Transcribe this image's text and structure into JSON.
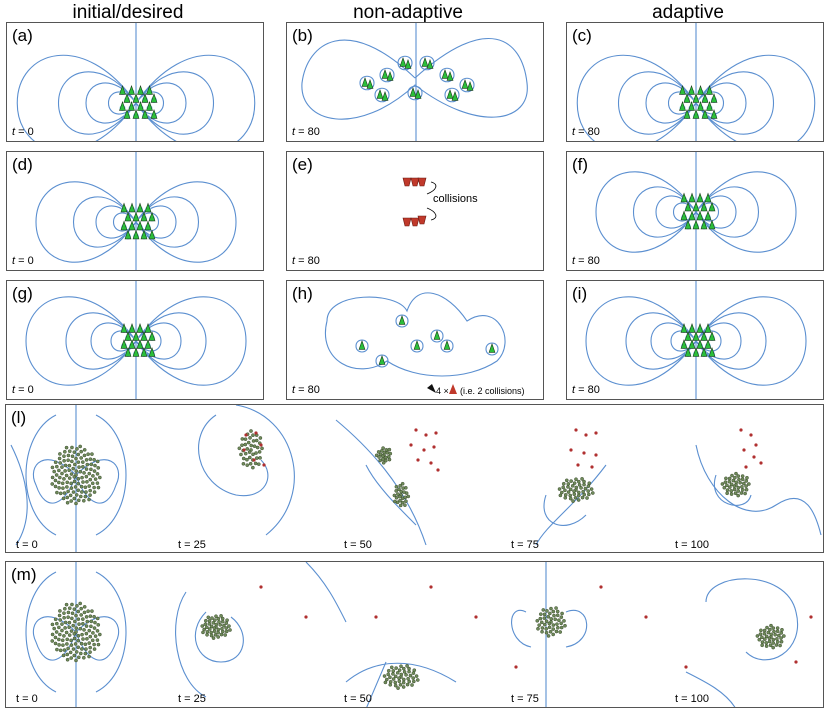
{
  "columns": [
    "initial/desired",
    "non-adaptive",
    "adaptive"
  ],
  "panels": [
    {
      "label": "(a)",
      "t": "t",
      "tval": " = 0"
    },
    {
      "label": "(b)",
      "t": "t",
      "tval": " = 80"
    },
    {
      "label": "(c)",
      "t": "t",
      "tval": " = 80"
    },
    {
      "label": "(d)",
      "t": "t",
      "tval": " = 0"
    },
    {
      "label": "(e)",
      "t": "t",
      "tval": " = 80"
    },
    {
      "label": "(f)",
      "t": "t",
      "tval": " = 80"
    },
    {
      "label": "(g)",
      "t": "t",
      "tval": " = 0"
    },
    {
      "label": "(h)",
      "t": "t",
      "tval": " = 80"
    },
    {
      "label": "(i)",
      "t": "t",
      "tval": " = 80"
    }
  ],
  "annotations": {
    "collisions": "collisions",
    "legend_count": "4 ×",
    "legend_note": "(i.e. 2 collisions)"
  },
  "strip_l": {
    "label": "(l)",
    "times": [
      "t = 0",
      "t = 25",
      "t = 50",
      "t = 75",
      "t = 100"
    ]
  },
  "strip_m": {
    "label": "(m)",
    "times": [
      "t = 0",
      "t = 25",
      "t = 50",
      "t = 75",
      "t = 100"
    ]
  },
  "colors": {
    "field_line": "#5b8fd0",
    "agent_fill": "#2bbf3a",
    "agent_alt": "#8fd1e8",
    "collision": "#c0392b",
    "target_dot": "#b03030",
    "border": "#555555"
  }
}
